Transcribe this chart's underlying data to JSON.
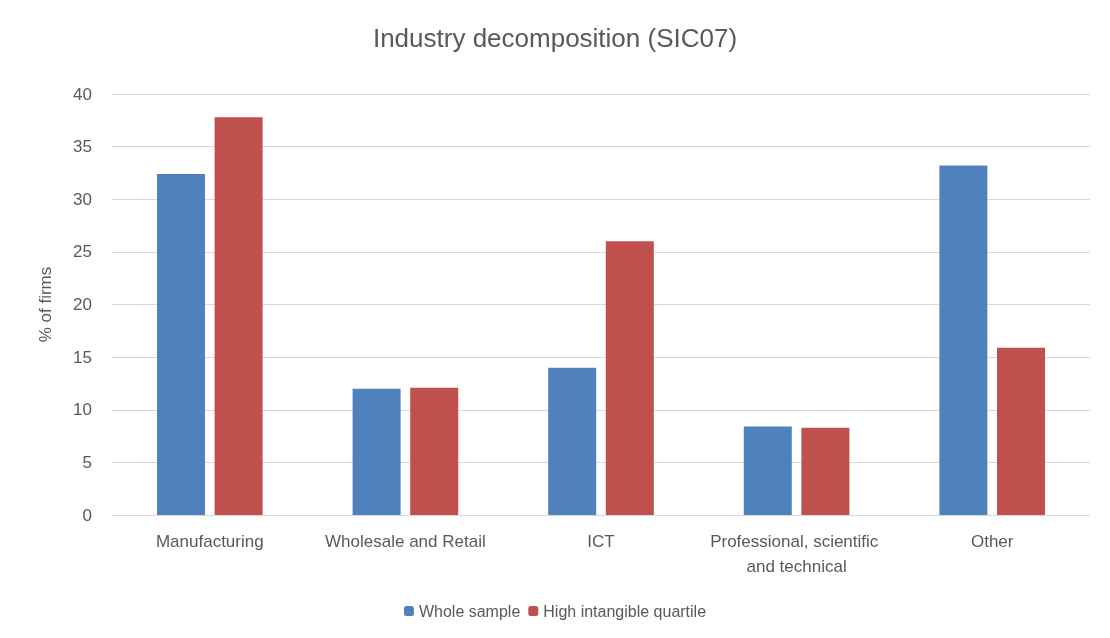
{
  "chart_data": {
    "type": "bar",
    "title": "Industry decomposition (SIC07)",
    "ylabel": "% of firms",
    "categories": [
      "Manufacturing",
      "Wholesale and Retail",
      "ICT",
      "Professional, scientific and technical",
      "Other"
    ],
    "series": [
      {
        "name": "Whole sample",
        "color": "#4f81bd",
        "values": [
          32.4,
          12.0,
          14.0,
          8.4,
          33.2
        ]
      },
      {
        "name": "High intangible quartile",
        "color": "#c0504d",
        "values": [
          37.8,
          12.1,
          26.0,
          8.3,
          15.9
        ]
      }
    ],
    "ylim": [
      0,
      40
    ],
    "yticks": [
      0,
      5,
      10,
      15,
      20,
      25,
      30,
      35,
      40
    ],
    "grid": "y",
    "legend": "bottom"
  }
}
